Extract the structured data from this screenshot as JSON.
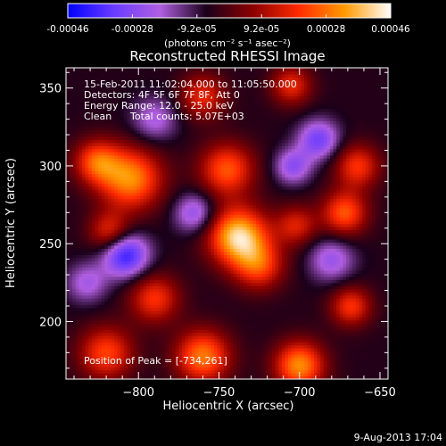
{
  "chart_data": {
    "type": "heatmap",
    "title": "Reconstructed RHESSI Image",
    "xlabel": "Heliocentric X (arcsec)",
    "ylabel": "Heliocentric Y (arcsec)",
    "xlim": [
      -845,
      -645
    ],
    "ylim": [
      163,
      363
    ],
    "xticks": [
      -800,
      -750,
      -700,
      -650
    ],
    "yticks": [
      200,
      250,
      300,
      350
    ],
    "colorbar": {
      "ticks": [
        "-0.00046",
        "-0.00028",
        "-9.2e-05",
        "9.2e-05",
        "0.00028",
        "0.00046"
      ],
      "min": -0.00046,
      "max": 0.00046,
      "unit_label": "(photons cm⁻² s⁻¹ asec⁻²)",
      "colors": [
        "#0000ff",
        "#6a3cff",
        "#b05fe0",
        "#1a001a",
        "#8a0000",
        "#ff2a00",
        "#ff9a00",
        "#ffffff"
      ]
    },
    "annotations": [
      "15-Feb-2011 11:02:04.000 to 11:05:50.000",
      "Detectors: 4F 5F 6F 7F 8F, Att 0",
      "Energy Range: 12.0 - 25.0 keV",
      "Clean",
      "Total counts: 5.07E+03"
    ],
    "peak_label": "Position of Peak = [-734,261]",
    "peak": [
      -734,
      261
    ],
    "blobs": [
      {
        "x": -738,
        "y": 255,
        "v": 1.0,
        "s": 13
      },
      {
        "x": -745,
        "y": 298,
        "v": 0.65,
        "s": 12
      },
      {
        "x": -725,
        "y": 236,
        "v": 0.55,
        "s": 11
      },
      {
        "x": -805,
        "y": 292,
        "v": 0.8,
        "s": 14
      },
      {
        "x": -826,
        "y": 303,
        "v": 0.6,
        "s": 10
      },
      {
        "x": -818,
        "y": 258,
        "v": 0.5,
        "s": 9
      },
      {
        "x": -790,
        "y": 215,
        "v": 0.55,
        "s": 11
      },
      {
        "x": -820,
        "y": 180,
        "v": 0.6,
        "s": 12
      },
      {
        "x": -760,
        "y": 178,
        "v": 0.75,
        "s": 12
      },
      {
        "x": -700,
        "y": 172,
        "v": 0.8,
        "s": 11
      },
      {
        "x": -672,
        "y": 270,
        "v": 0.65,
        "s": 10
      },
      {
        "x": -664,
        "y": 300,
        "v": 0.55,
        "s": 10
      },
      {
        "x": -760,
        "y": 345,
        "v": 0.5,
        "s": 10
      },
      {
        "x": -705,
        "y": 352,
        "v": 0.5,
        "s": 9
      },
      {
        "x": -702,
        "y": 262,
        "v": 0.45,
        "s": 9
      },
      {
        "x": -668,
        "y": 210,
        "v": 0.55,
        "s": 9
      },
      {
        "x": -808,
        "y": 243,
        "v": -0.75,
        "s": 10
      },
      {
        "x": -688,
        "y": 317,
        "v": -0.55,
        "s": 9
      },
      {
        "x": -704,
        "y": 300,
        "v": -0.45,
        "s": 8
      },
      {
        "x": -765,
        "y": 270,
        "v": -0.45,
        "s": 9
      },
      {
        "x": -680,
        "y": 240,
        "v": -0.4,
        "s": 10
      },
      {
        "x": -790,
        "y": 330,
        "v": -0.35,
        "s": 10
      },
      {
        "x": -832,
        "y": 225,
        "v": -0.35,
        "s": 9
      }
    ]
  },
  "footer": {
    "date": "9-Aug-2013 17:04"
  }
}
